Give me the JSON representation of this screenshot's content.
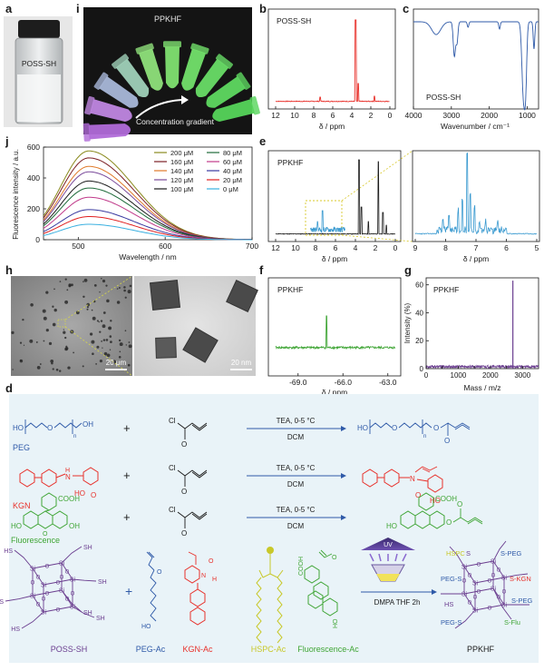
{
  "colors": {
    "red": "#e8302a",
    "blue": "#2f5aa8",
    "green": "#3fa535",
    "purple": "#6a3d8f",
    "yellow": "#c8c82a",
    "black": "#1a1a1a",
    "scheme_bg": "#e9f3f8"
  },
  "panels": {
    "a": {
      "letter": "a",
      "vial_label": "POSS-SH"
    },
    "i": {
      "letter": "i",
      "title": "PPKHF",
      "caption": "Concentration gradient"
    },
    "b": {
      "letter": "b",
      "label": "POSS-SH",
      "xlabel": "δ / ppm",
      "ticks": [
        "12",
        "10",
        "8",
        "6",
        "4",
        "2",
        "0"
      ]
    },
    "c": {
      "letter": "c",
      "label": "POSS-SH",
      "xlabel": "Wavenumber / cm⁻¹",
      "ticks": [
        "4000",
        "3000",
        "2000",
        "1000"
      ]
    },
    "j": {
      "letter": "j",
      "xlabel": "Wavelength / nm",
      "ylabel": "Fluorescence intensity / a.u.",
      "xticks": [
        "600",
        "700"
      ],
      "xtick_first": "500",
      "yticks": [
        "0",
        "200",
        "400",
        "600"
      ]
    },
    "e": {
      "letter": "e",
      "label": "PPKHF",
      "xlabel": "δ / ppm",
      "ticks_left": [
        "12",
        "10",
        "8",
        "6",
        "4",
        "2",
        "0"
      ],
      "ticks_right": [
        "9",
        "8",
        "7",
        "6",
        "5"
      ]
    },
    "h": {
      "letter": "h",
      "scale_left": "20 μm",
      "scale_right": "20 nm"
    },
    "f": {
      "letter": "f",
      "label": "PPKHF",
      "xlabel": "δ / ppm",
      "ticks": [
        "-69.0",
        "-66.0",
        "-63.0"
      ]
    },
    "g": {
      "letter": "g",
      "label": "PPKHF",
      "xlabel": "Mass / m/z",
      "ylabel": "Intensity (%)",
      "xticks": [
        "0",
        "500",
        "1000",
        "1500",
        "2000",
        "2500",
        "3000"
      ],
      "yticks": [
        "0",
        "20",
        "40",
        "60"
      ]
    },
    "d": {
      "letter": "d",
      "reactions": [
        {
          "name": "PEG",
          "conditions_top": "TEA, 0-5 °C",
          "conditions_bottom": "DCM"
        },
        {
          "name": "KGN",
          "conditions_top": "TEA, 0-5 °C",
          "conditions_bottom": "DCM"
        },
        {
          "name": "Fluorescence",
          "conditions_top": "TEA, 0-5 °C",
          "conditions_bottom": "DCM"
        }
      ],
      "reagent": {
        "cl": "Cl",
        "o": "O"
      },
      "peg": {
        "ho": "HO",
        "oh": "OH",
        "o": "O",
        "n": "n"
      },
      "kgn": {
        "n": "N",
        "h": "H",
        "o": "O",
        "ho": "HO"
      },
      "flu": {
        "cooh": "COOH",
        "ho": "HO",
        "oh": "OH",
        "o": "O"
      },
      "uv_label": "UV",
      "conditions_final": "DMPA THF 2h",
      "bottom_labels": [
        "POSS-SH",
        "PEG-Ac",
        "KGN-Ac",
        "HSPC-Ac",
        "Fluorescence-Ac",
        "PPKHF"
      ],
      "plus": "+",
      "poss": {
        "si": "Si",
        "o": "O",
        "sh": "SH",
        "hs": "HS"
      },
      "product": {
        "hspc": "HSPC",
        "s_peg": "S-PEG",
        "peg_s": "PEG-S",
        "s_kgn": "S-KGN",
        "s_flu": "S-Flu",
        "hs": "HS",
        "s": "S"
      }
    }
  },
  "chart_data": [
    {
      "type": "line",
      "title": "",
      "xlabel": "Wavelength / nm",
      "ylabel": "Fluorescence intensity / a.u.",
      "xlim": [
        460,
        700
      ],
      "ylim": [
        0,
        600
      ],
      "peak_nm": 512,
      "series": [
        {
          "name": "200 μM",
          "color": "#8a8a1e",
          "peak": 575
        },
        {
          "name": "160 μM",
          "color": "#7b1f24",
          "peak": 530
        },
        {
          "name": "140 μM",
          "color": "#e07a2a",
          "peak": 475
        },
        {
          "name": "120 μM",
          "color": "#7a4a9a",
          "peak": 440
        },
        {
          "name": "100 μM",
          "color": "#1a1a1a",
          "peak": 380
        },
        {
          "name": "80 μM",
          "color": "#1e6b3a",
          "peak": 335
        },
        {
          "name": "60 μM",
          "color": "#c03a8a",
          "peak": 275
        },
        {
          "name": "40 μM",
          "color": "#3a3aa0",
          "peak": 195
        },
        {
          "name": "20 μM",
          "color": "#e02020",
          "peak": 150
        },
        {
          "name": "0 μM",
          "color": "#3ab0e0",
          "peak": 100
        }
      ]
    },
    {
      "type": "line",
      "title": "",
      "xlabel": "Mass / m/z",
      "ylabel": "Intensity (%)",
      "xlim": [
        0,
        3500
      ],
      "ylim": [
        0,
        65
      ],
      "peaks": [
        {
          "x": 2700,
          "y": 63
        }
      ]
    }
  ]
}
